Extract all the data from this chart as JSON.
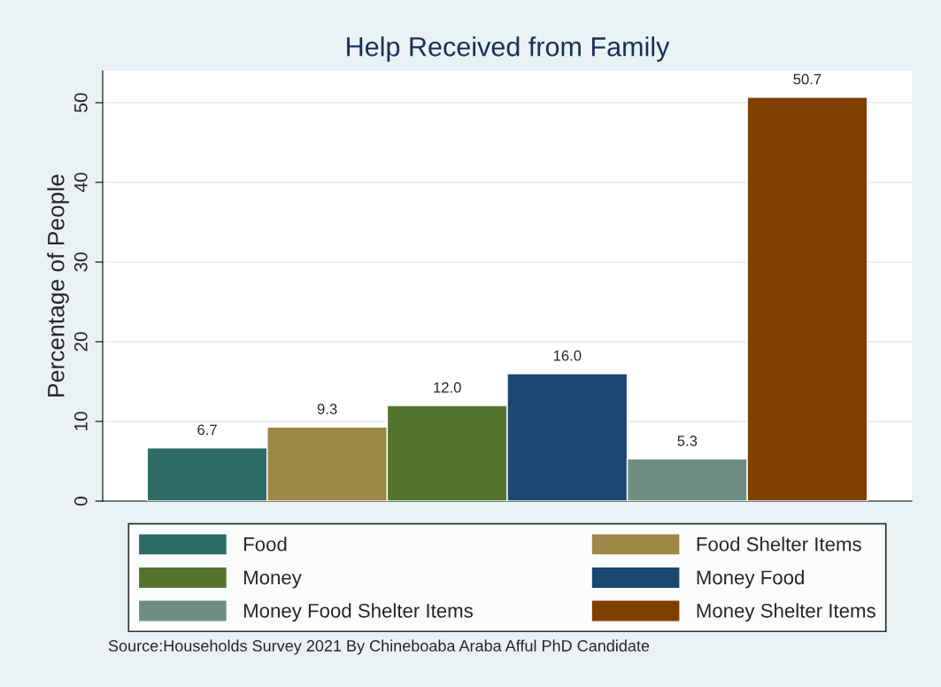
{
  "chart_data": {
    "type": "bar",
    "title": "Help Received from Family",
    "ylabel": "Percentage of People",
    "categories": [
      null
    ],
    "series": [
      {
        "name": "Food",
        "color": "#2d6d66",
        "values": [
          6.7
        ],
        "value_labels": [
          "6.7"
        ]
      },
      {
        "name": "Food Shelter Items",
        "color": "#9c8847",
        "values": [
          9.3
        ],
        "value_labels": [
          "9.3"
        ]
      },
      {
        "name": "Money",
        "color": "#55752f",
        "values": [
          12
        ],
        "value_labels": [
          "12.0"
        ]
      },
      {
        "name": "Money Food",
        "color": "#1a476f",
        "values": [
          16
        ],
        "value_labels": [
          "16.0"
        ]
      },
      {
        "name": "Money Food Shelter Items",
        "color": "#6e8e84",
        "values": [
          5.3
        ],
        "value_labels": [
          "5.3"
        ]
      },
      {
        "name": "Money Shelter Items",
        "color": "#7f3f00",
        "values": [
          50.7
        ],
        "value_labels": [
          "50.7"
        ]
      }
    ],
    "ylim": [
      0,
      54
    ],
    "yticks": [
      0,
      10,
      20,
      30,
      40,
      50
    ],
    "grid": "y",
    "legend": "bottom",
    "annotations": [
      "Source:Households Survey 2021 By Chineboaba Araba Afful PhD Candidate"
    ]
  }
}
